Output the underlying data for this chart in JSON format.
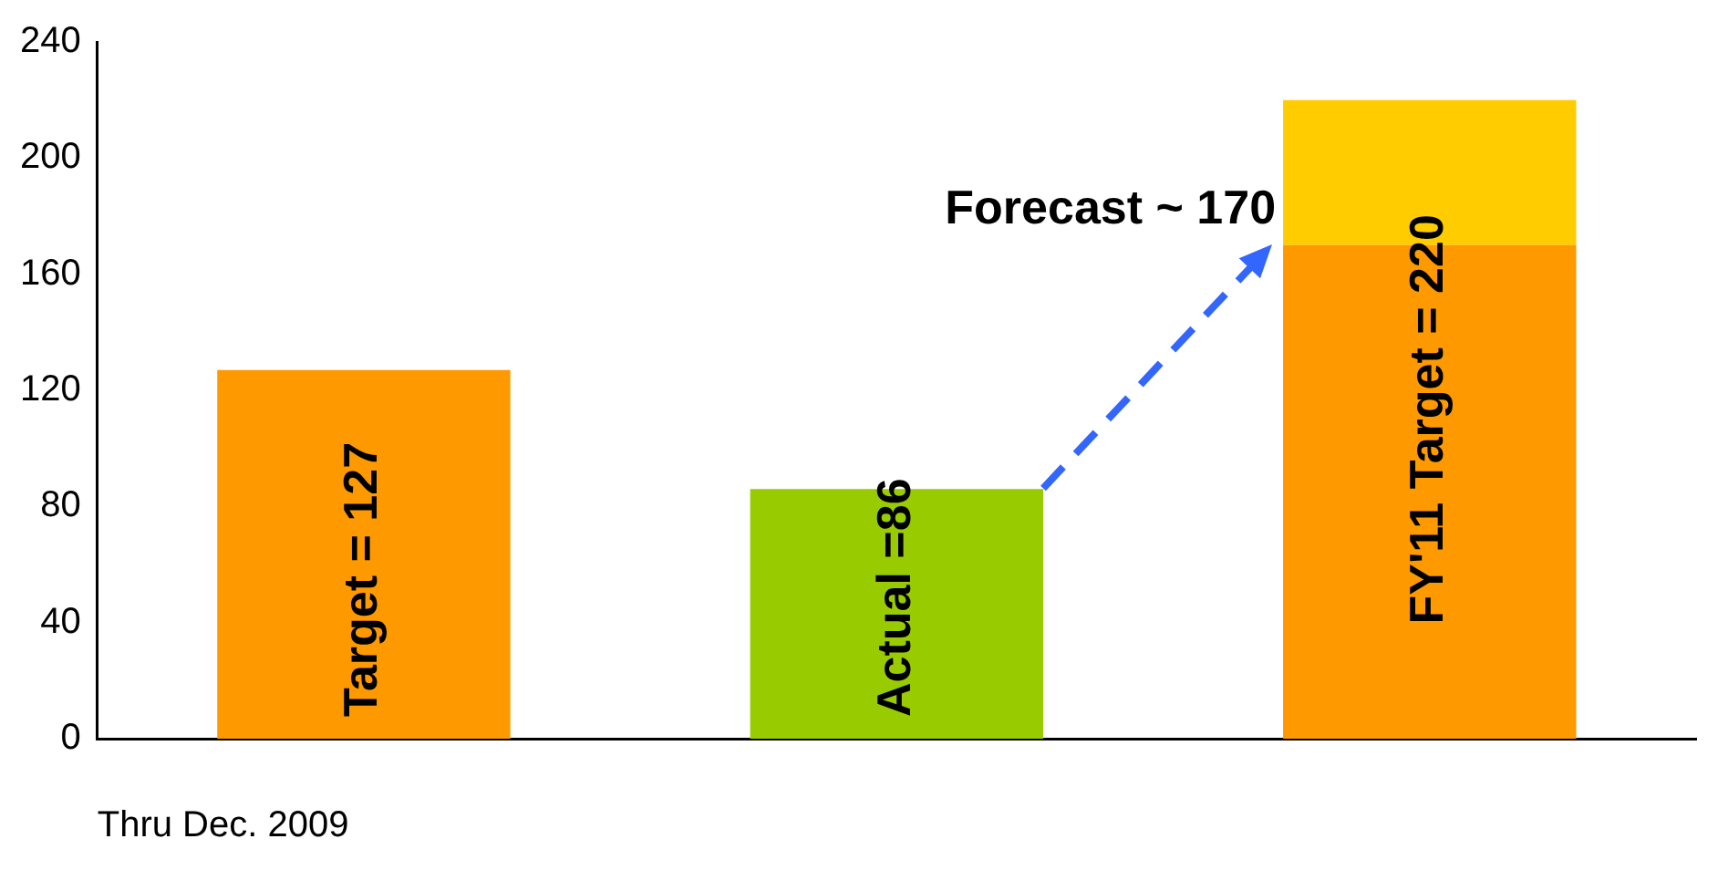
{
  "chart_data": {
    "type": "bar",
    "xlabel": "Thru Dec. 2009",
    "categories": [
      null,
      null,
      null
    ],
    "stacked": true,
    "series": [
      {
        "colors": [
          "#ff9900",
          "#99cc00",
          "#ff9900"
        ],
        "values": [
          127,
          86,
          170
        ],
        "value_labels": [
          "Target = 127",
          "Actual =86",
          null
        ]
      },
      {
        "color": "#ffcc00",
        "values": [
          null,
          null,
          50
        ]
      }
    ],
    "totals": [
      null,
      null,
      "FY'11 Target = 220"
    ],
    "annotations": [
      "Forecast ~ 170"
    ],
    "ylim": [
      0,
      240
    ],
    "yticks": [
      0,
      40,
      80,
      120,
      160,
      200,
      240
    ],
    "grid": false,
    "legend": false
  }
}
